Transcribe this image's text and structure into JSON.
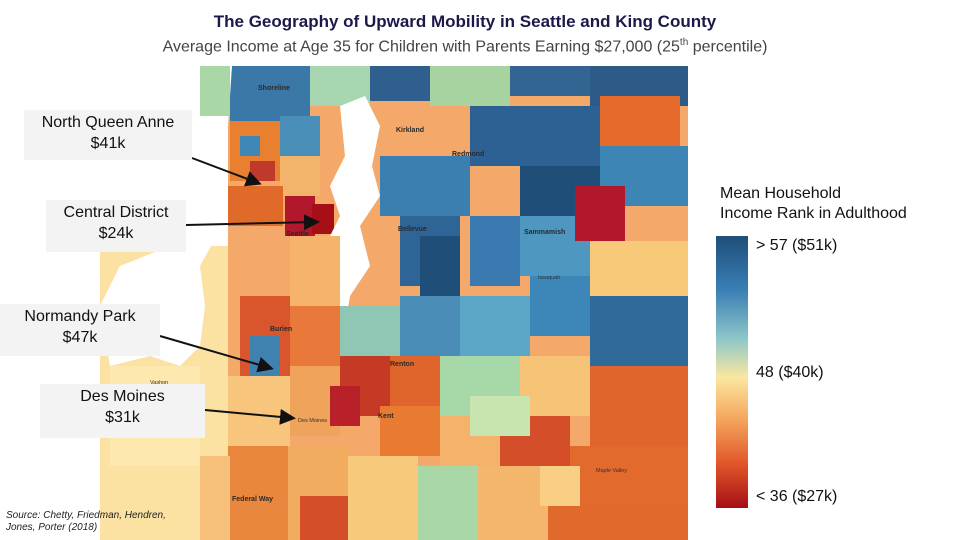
{
  "title": "The Geography of Upward Mobility in Seattle and King County",
  "subtitle_main": "Average Income at Age 35 for Children with Parents Earning $27,000 (25",
  "subtitle_sup": "th",
  "subtitle_end": " percentile)",
  "callouts": [
    {
      "name": "North Queen Anne",
      "value": "$41k"
    },
    {
      "name": "Central District",
      "value": "$24k"
    },
    {
      "name": "Normandy Park",
      "value": "$47k"
    },
    {
      "name": "Des Moines",
      "value": "$31k"
    }
  ],
  "legend": {
    "title_line1": "Mean Household",
    "title_line2": "Income Rank in Adulthood",
    "high": "> 57 ($51k)",
    "mid": "48 ($40k)",
    "low": "< 36 ($27k)",
    "color_high": "#1f4e79",
    "color_mid": "#fbe7a0",
    "color_low": "#a50f15"
  },
  "map_labels": {
    "shoreline": "Shoreline",
    "kirkland": "Kirkland",
    "redmond": "Redmond",
    "seattle": "Seattle",
    "bellevue": "Bellevue",
    "sammamish": "Sammamish",
    "burien": "Burien",
    "renton": "Renton",
    "kent": "Kent",
    "des_moines": "Des Moines",
    "federal_way": "Federal Way",
    "issaquah": "Issaquah",
    "vashon": "Vashon",
    "maple_valley": "Maple Valley"
  },
  "source_line1": "Source: Chetty, Friedman, Hendren,",
  "source_line2": "Jones, Porter (2018)"
}
